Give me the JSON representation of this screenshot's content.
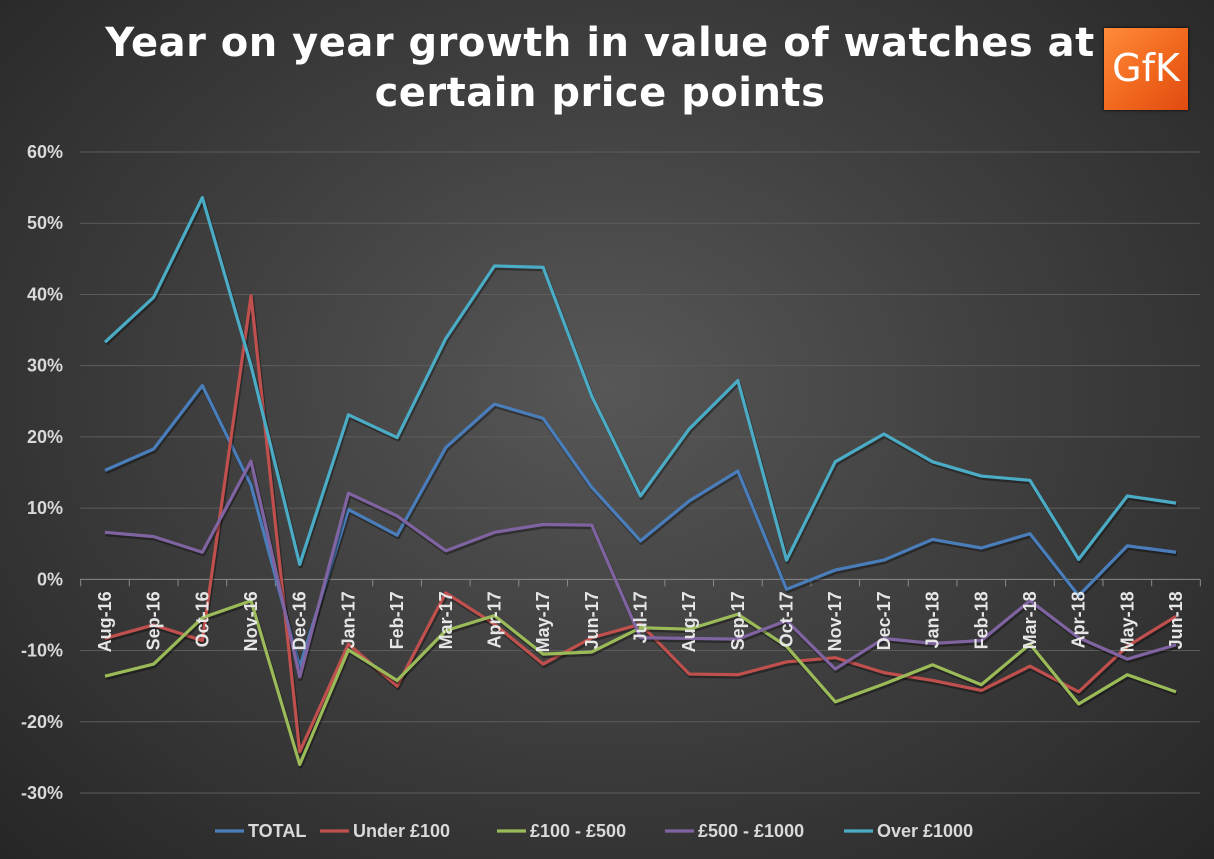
{
  "chart_data": {
    "type": "line",
    "title": "Year on year growth in value of watches at certain price points",
    "title_lines": [
      "Year on year growth in value of watches at",
      "certain price points"
    ],
    "logo_text": "GfK",
    "xlabel": "",
    "ylabel": "",
    "ylim": [
      -30,
      60
    ],
    "yticks": [
      "-30%",
      "-20%",
      "-10%",
      "0%",
      "10%",
      "20%",
      "30%",
      "40%",
      "50%",
      "60%"
    ],
    "grid": true,
    "legend_position": "bottom",
    "categories": [
      "Aug-16",
      "Sep-16",
      "Oct-16",
      "Nov-16",
      "Dec-16",
      "Jan-17",
      "Feb-17",
      "Mar-17",
      "Apr-17",
      "May-17",
      "Jun-17",
      "Jul-17",
      "Aug-17",
      "Sep-17",
      "Oct-17",
      "Nov-17",
      "Dec-17",
      "Jan-18",
      "Feb-18",
      "Mar-18",
      "Apr-18",
      "May-18",
      "Jun-18"
    ],
    "series": [
      {
        "name": "TOTAL",
        "color": "#4a7ebb",
        "values": [
          15.3,
          18.3,
          27.2,
          13.2,
          -12.3,
          9.8,
          6.2,
          18.5,
          24.6,
          22.6,
          12.9,
          5.4,
          11.0,
          15.2,
          -1.4,
          1.3,
          2.7,
          5.6,
          4.4,
          6.4,
          -2.3,
          4.7,
          3.8
        ]
      },
      {
        "name": "Under £100",
        "color": "#c0504d",
        "values": [
          -8.3,
          -6.4,
          -8.6,
          39.8,
          -24.2,
          -9.1,
          -15.0,
          -1.9,
          -6.3,
          -11.9,
          -8.2,
          -6.3,
          -13.3,
          -13.4,
          -11.6,
          -11.0,
          -13.1,
          -14.2,
          -15.6,
          -12.2,
          -15.8,
          -9.4,
          -5.2
        ]
      },
      {
        "name": "£100 - £500",
        "color": "#9bbb59",
        "values": [
          -13.6,
          -11.9,
          -5.4,
          -3.0,
          -26.0,
          -9.9,
          -14.2,
          -7.2,
          -5.1,
          -10.5,
          -10.2,
          -6.8,
          -7.0,
          -4.9,
          -9.4,
          -17.2,
          -14.7,
          -12.0,
          -14.8,
          -9.1,
          -17.5,
          -13.4,
          -15.8
        ]
      },
      {
        "name": "£500 - £1000",
        "color": "#8064a2",
        "values": [
          6.6,
          6.0,
          3.8,
          16.6,
          -13.7,
          12.1,
          8.9,
          4.0,
          6.6,
          7.7,
          7.6,
          -8.2,
          -8.3,
          -8.4,
          -5.8,
          -12.6,
          -8.3,
          -9.0,
          -8.6,
          -3.0,
          -8.2,
          -11.2,
          -9.2
        ]
      },
      {
        "name": "Over £1000",
        "color": "#4bacc6",
        "values": [
          33.3,
          39.6,
          53.6,
          30.0,
          2.1,
          23.1,
          19.9,
          33.8,
          44.0,
          43.8,
          25.7,
          11.7,
          21.1,
          27.9,
          2.7,
          16.5,
          20.4,
          16.5,
          14.5,
          13.9,
          2.8,
          11.7,
          10.7
        ]
      }
    ]
  }
}
